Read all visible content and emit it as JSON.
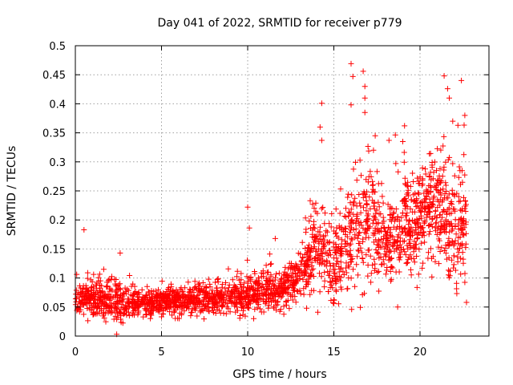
{
  "chart_data": {
    "type": "scatter",
    "title": "Day 041 of 2022, SRMTID for receiver p779",
    "xlabel": "GPS time / hours",
    "ylabel": "SRMTID / TECUs",
    "xlim": [
      0,
      24
    ],
    "ylim": [
      0,
      0.5
    ],
    "grid": true,
    "marker": "+",
    "series_color": "#ff0000",
    "x_ticks": [
      0,
      5,
      10,
      15,
      20
    ],
    "x_tick_labels": [
      "0",
      "5",
      "10",
      "15",
      "20"
    ],
    "y_ticks": [
      0,
      0.05,
      0.1,
      0.15,
      0.2,
      0.25,
      0.3,
      0.35,
      0.4,
      0.45,
      0.5
    ],
    "y_tick_labels": [
      "0",
      "0.05",
      "0.1",
      "0.15",
      "0.2",
      "0.25",
      "0.3",
      "0.35",
      "0.4",
      "0.45",
      "0.5"
    ],
    "trend_profile": {
      "x": [
        0,
        2,
        4,
        6,
        8,
        10,
        12,
        13,
        14,
        15,
        16,
        17,
        18,
        19,
        20,
        21,
        22,
        22.7
      ],
      "y_median": [
        0.065,
        0.062,
        0.058,
        0.06,
        0.065,
        0.07,
        0.08,
        0.1,
        0.15,
        0.12,
        0.16,
        0.2,
        0.16,
        0.18,
        0.2,
        0.22,
        0.18,
        0.2
      ],
      "y_spread": [
        0.025,
        0.03,
        0.022,
        0.02,
        0.025,
        0.03,
        0.03,
        0.04,
        0.07,
        0.06,
        0.08,
        0.09,
        0.07,
        0.07,
        0.07,
        0.08,
        0.09,
        0.1
      ]
    },
    "notable_points": [
      {
        "x": 0.5,
        "y": 0.183
      },
      {
        "x": 2.4,
        "y": 0.003
      },
      {
        "x": 2.6,
        "y": 0.143
      },
      {
        "x": 10.0,
        "y": 0.222
      },
      {
        "x": 10.1,
        "y": 0.186
      },
      {
        "x": 11.6,
        "y": 0.168
      },
      {
        "x": 14.3,
        "y": 0.401
      },
      {
        "x": 14.2,
        "y": 0.36
      },
      {
        "x": 14.3,
        "y": 0.337
      },
      {
        "x": 16.0,
        "y": 0.469
      },
      {
        "x": 16.1,
        "y": 0.447
      },
      {
        "x": 16.0,
        "y": 0.398
      },
      {
        "x": 16.7,
        "y": 0.456
      },
      {
        "x": 16.8,
        "y": 0.43
      },
      {
        "x": 16.8,
        "y": 0.41
      },
      {
        "x": 16.8,
        "y": 0.385
      },
      {
        "x": 17.4,
        "y": 0.345
      },
      {
        "x": 17.3,
        "y": 0.32
      },
      {
        "x": 18.2,
        "y": 0.337
      },
      {
        "x": 18.7,
        "y": 0.05
      },
      {
        "x": 19.1,
        "y": 0.362
      },
      {
        "x": 19.0,
        "y": 0.335
      },
      {
        "x": 21.4,
        "y": 0.448
      },
      {
        "x": 21.6,
        "y": 0.426
      },
      {
        "x": 21.7,
        "y": 0.41
      },
      {
        "x": 21.9,
        "y": 0.37
      },
      {
        "x": 22.2,
        "y": 0.363
      },
      {
        "x": 22.4,
        "y": 0.44
      },
      {
        "x": 22.6,
        "y": 0.38
      },
      {
        "x": 22.7,
        "y": 0.058
      }
    ]
  }
}
